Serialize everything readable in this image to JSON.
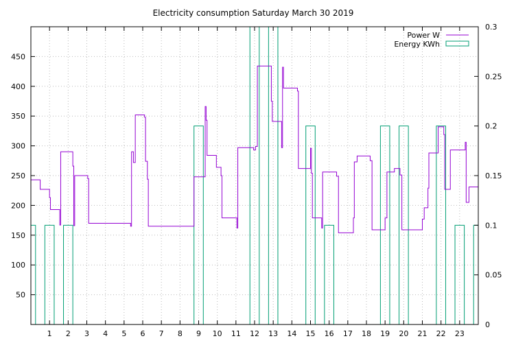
{
  "chart_data": {
    "type": "line",
    "title": "Electricity consumption Saturday March 30 2019",
    "xlim": [
      0,
      24
    ],
    "ylim": [
      0,
      500
    ],
    "y2lim": [
      0,
      0.3
    ],
    "grid": true,
    "legend_position": "top-right",
    "x_ticks": [
      "1",
      "2",
      "3",
      "4",
      "5",
      "6",
      "7",
      "8",
      "9",
      "10",
      "11",
      "12",
      "13",
      "14",
      "15",
      "16",
      "17",
      "18",
      "19",
      "20",
      "21",
      "22",
      "23"
    ],
    "y_ticks": [
      "50",
      "100",
      "150",
      "200",
      "250",
      "300",
      "350",
      "400",
      "450"
    ],
    "y2_ticks": [
      "0",
      "0.05",
      "0.1",
      "0.15",
      "0.2",
      "0.25",
      "0.3"
    ],
    "colors": {
      "power": "#9400d3",
      "energy": "#009e73"
    },
    "series": [
      {
        "name": "Power W",
        "axis": "left",
        "style": "steps",
        "points": [
          [
            0,
            243
          ],
          [
            0.5,
            227
          ],
          [
            1.0,
            213
          ],
          [
            1.05,
            193
          ],
          [
            1.55,
            167
          ],
          [
            1.6,
            290
          ],
          [
            2.25,
            266
          ],
          [
            2.3,
            166
          ],
          [
            2.35,
            250
          ],
          [
            3.05,
            245
          ],
          [
            3.1,
            170
          ],
          [
            5.35,
            165
          ],
          [
            5.4,
            290
          ],
          [
            5.5,
            272
          ],
          [
            5.6,
            352
          ],
          [
            6.1,
            348
          ],
          [
            6.15,
            274
          ],
          [
            6.25,
            244
          ],
          [
            6.3,
            165
          ],
          [
            8.75,
            248
          ],
          [
            9.35,
            366
          ],
          [
            9.4,
            343
          ],
          [
            9.45,
            284
          ],
          [
            9.95,
            264
          ],
          [
            10.2,
            250
          ],
          [
            10.25,
            179
          ],
          [
            11.05,
            162
          ],
          [
            11.1,
            297
          ],
          [
            11.95,
            293
          ],
          [
            12.05,
            299
          ],
          [
            12.15,
            434
          ],
          [
            12.9,
            375
          ],
          [
            12.95,
            341
          ],
          [
            13.45,
            297
          ],
          [
            13.5,
            432
          ],
          [
            13.55,
            397
          ],
          [
            14.3,
            392
          ],
          [
            14.35,
            262
          ],
          [
            15.0,
            296
          ],
          [
            15.05,
            254
          ],
          [
            15.1,
            179
          ],
          [
            15.6,
            162
          ],
          [
            15.65,
            256
          ],
          [
            16.4,
            249
          ],
          [
            16.5,
            154
          ],
          [
            17.3,
            179
          ],
          [
            17.35,
            273
          ],
          [
            17.5,
            283
          ],
          [
            18.2,
            275
          ],
          [
            18.3,
            159
          ],
          [
            19.0,
            179
          ],
          [
            19.1,
            256
          ],
          [
            19.5,
            262
          ],
          [
            19.8,
            251
          ],
          [
            19.9,
            159
          ],
          [
            21.0,
            177
          ],
          [
            21.1,
            196
          ],
          [
            21.3,
            229
          ],
          [
            21.35,
            288
          ],
          [
            21.85,
            332
          ],
          [
            22.15,
            319
          ],
          [
            22.2,
            227
          ],
          [
            22.5,
            293
          ],
          [
            23.3,
            306
          ],
          [
            23.35,
            205
          ],
          [
            23.5,
            231
          ],
          [
            24,
            231
          ]
        ]
      },
      {
        "name": "Energy KWh",
        "axis": "right",
        "style": "boxes",
        "boxes": [
          [
            0,
            0.1
          ],
          [
            1,
            0.1
          ],
          [
            2,
            0.1
          ],
          [
            3,
            0
          ],
          [
            4,
            0
          ],
          [
            5,
            0
          ],
          [
            6,
            0
          ],
          [
            7,
            0
          ],
          [
            8,
            0
          ],
          [
            9,
            0.2
          ],
          [
            10,
            0
          ],
          [
            11,
            0
          ],
          [
            12,
            0.3
          ],
          [
            13,
            0.3
          ],
          [
            14,
            0
          ],
          [
            15,
            0.2
          ],
          [
            16,
            0.1
          ],
          [
            17,
            0
          ],
          [
            18,
            0
          ],
          [
            19,
            0.2
          ],
          [
            20,
            0.2
          ],
          [
            21,
            0
          ],
          [
            22,
            0.2
          ],
          [
            23,
            0.1
          ],
          [
            24,
            0.1
          ]
        ]
      }
    ]
  }
}
